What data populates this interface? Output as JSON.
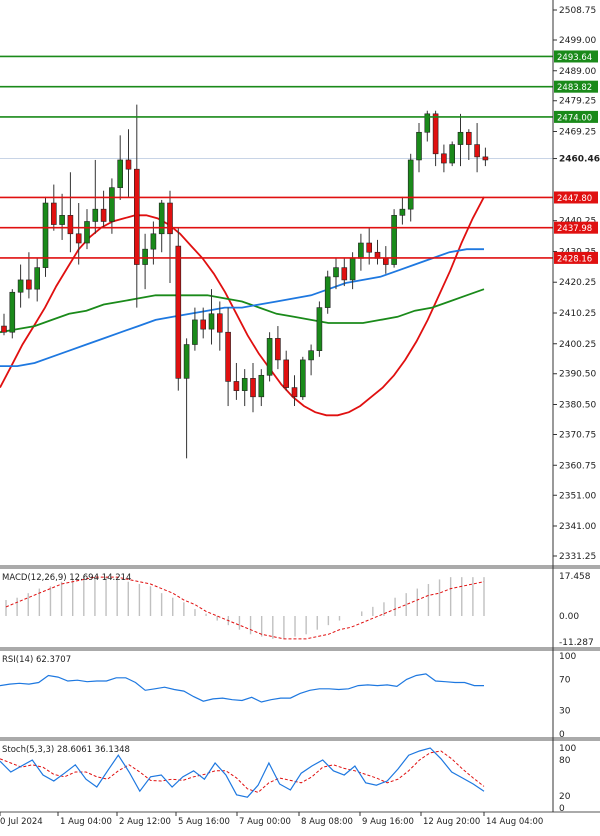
{
  "chart_data": {
    "type": "candlestick",
    "instrument_panel": {
      "y_ticks": [
        2508.75,
        2499.0,
        2489.0,
        2479.25,
        2469.25,
        2460.46,
        2440.25,
        2430.25,
        2420.25,
        2410.25,
        2400.25,
        2390.5,
        2380.5,
        2370.75,
        2360.75,
        2351.0,
        2341.0,
        2331.25
      ],
      "y_tick_labels": [
        "2508.75",
        "2499.00",
        "2489.00",
        "2479.25",
        "2469.25",
        "2460.46",
        "2440.25",
        "2430.25",
        "2420.25",
        "2410.25",
        "2400.25",
        "2390.50",
        "2380.50",
        "2370.75",
        "2360.75",
        "2351.00",
        "2341.00",
        "2331.25"
      ],
      "ylim": [
        2328.0,
        2512.0
      ],
      "last_price": 2460.46,
      "resistance_levels": [
        {
          "label": "2493.64",
          "value": 2493.64,
          "color": "#1a8a1a"
        },
        {
          "label": "2483.82",
          "value": 2483.82,
          "color": "#1a8a1a"
        },
        {
          "label": "2474.00",
          "value": 2474.0,
          "color": "#1a8a1a"
        }
      ],
      "support_levels": [
        {
          "label": "2447.80",
          "value": 2447.8,
          "color": "#e01010"
        },
        {
          "label": "2437.98",
          "value": 2437.98,
          "color": "#e01010"
        },
        {
          "label": "2428.16",
          "value": 2428.16,
          "color": "#e01010"
        }
      ],
      "candles": [
        {
          "o": 2406,
          "h": 2410,
          "l": 2403,
          "c": 2404
        },
        {
          "o": 2404,
          "h": 2418,
          "l": 2402,
          "c": 2417
        },
        {
          "o": 2417,
          "h": 2426,
          "l": 2412,
          "c": 2421
        },
        {
          "o": 2421,
          "h": 2430,
          "l": 2415,
          "c": 2418
        },
        {
          "o": 2418,
          "h": 2428,
          "l": 2414,
          "c": 2425
        },
        {
          "o": 2425,
          "h": 2448,
          "l": 2422,
          "c": 2446
        },
        {
          "o": 2446,
          "h": 2452,
          "l": 2437,
          "c": 2439
        },
        {
          "o": 2439,
          "h": 2449,
          "l": 2434,
          "c": 2442
        },
        {
          "o": 2442,
          "h": 2456,
          "l": 2430,
          "c": 2436
        },
        {
          "o": 2436,
          "h": 2446,
          "l": 2426,
          "c": 2433
        },
        {
          "o": 2433,
          "h": 2444,
          "l": 2431,
          "c": 2440
        },
        {
          "o": 2440,
          "h": 2460,
          "l": 2436,
          "c": 2444
        },
        {
          "o": 2444,
          "h": 2450,
          "l": 2438,
          "c": 2440
        },
        {
          "o": 2440,
          "h": 2454,
          "l": 2436,
          "c": 2451
        },
        {
          "o": 2451,
          "h": 2468,
          "l": 2447,
          "c": 2460
        },
        {
          "o": 2460,
          "h": 2470,
          "l": 2448,
          "c": 2457
        },
        {
          "o": 2457,
          "h": 2478,
          "l": 2412,
          "c": 2426
        },
        {
          "o": 2426,
          "h": 2436,
          "l": 2418,
          "c": 2431
        },
        {
          "o": 2431,
          "h": 2440,
          "l": 2426,
          "c": 2436
        },
        {
          "o": 2436,
          "h": 2447,
          "l": 2430,
          "c": 2446
        },
        {
          "o": 2446,
          "h": 2450,
          "l": 2420,
          "c": 2436
        },
        {
          "o": 2432,
          "h": 2438,
          "l": 2385,
          "c": 2389
        },
        {
          "o": 2389,
          "h": 2402,
          "l": 2363,
          "c": 2400
        },
        {
          "o": 2400,
          "h": 2412,
          "l": 2398,
          "c": 2408
        },
        {
          "o": 2408,
          "h": 2412,
          "l": 2402,
          "c": 2405
        },
        {
          "o": 2405,
          "h": 2418,
          "l": 2400,
          "c": 2410
        },
        {
          "o": 2410,
          "h": 2414,
          "l": 2398,
          "c": 2404
        },
        {
          "o": 2404,
          "h": 2412,
          "l": 2380,
          "c": 2388
        },
        {
          "o": 2388,
          "h": 2394,
          "l": 2382,
          "c": 2385
        },
        {
          "o": 2385,
          "h": 2392,
          "l": 2380,
          "c": 2389
        },
        {
          "o": 2389,
          "h": 2394,
          "l": 2378,
          "c": 2383
        },
        {
          "o": 2383,
          "h": 2392,
          "l": 2380,
          "c": 2390
        },
        {
          "o": 2390,
          "h": 2404,
          "l": 2388,
          "c": 2402
        },
        {
          "o": 2402,
          "h": 2406,
          "l": 2392,
          "c": 2395
        },
        {
          "o": 2395,
          "h": 2398,
          "l": 2385,
          "c": 2386
        },
        {
          "o": 2386,
          "h": 2390,
          "l": 2380,
          "c": 2383
        },
        {
          "o": 2383,
          "h": 2396,
          "l": 2382,
          "c": 2395
        },
        {
          "o": 2395,
          "h": 2400,
          "l": 2390,
          "c": 2398
        },
        {
          "o": 2398,
          "h": 2414,
          "l": 2396,
          "c": 2412
        },
        {
          "o": 2412,
          "h": 2424,
          "l": 2410,
          "c": 2422
        },
        {
          "o": 2422,
          "h": 2428,
          "l": 2418,
          "c": 2425
        },
        {
          "o": 2425,
          "h": 2428,
          "l": 2419,
          "c": 2421
        },
        {
          "o": 2421,
          "h": 2430,
          "l": 2418,
          "c": 2428
        },
        {
          "o": 2428,
          "h": 2436,
          "l": 2424,
          "c": 2433
        },
        {
          "o": 2433,
          "h": 2438,
          "l": 2426,
          "c": 2430
        },
        {
          "o": 2430,
          "h": 2434,
          "l": 2426,
          "c": 2428
        },
        {
          "o": 2428,
          "h": 2432,
          "l": 2423,
          "c": 2426
        },
        {
          "o": 2426,
          "h": 2444,
          "l": 2425,
          "c": 2442
        },
        {
          "o": 2442,
          "h": 2448,
          "l": 2439,
          "c": 2444
        },
        {
          "o": 2444,
          "h": 2462,
          "l": 2440,
          "c": 2460
        },
        {
          "o": 2460,
          "h": 2472,
          "l": 2456,
          "c": 2469
        },
        {
          "o": 2469,
          "h": 2476,
          "l": 2466,
          "c": 2475
        },
        {
          "o": 2475,
          "h": 2476,
          "l": 2458,
          "c": 2462
        },
        {
          "o": 2462,
          "h": 2465,
          "l": 2456,
          "c": 2459
        },
        {
          "o": 2459,
          "h": 2466,
          "l": 2458,
          "c": 2465
        },
        {
          "o": 2465,
          "h": 2475,
          "l": 2458,
          "c": 2469
        },
        {
          "o": 2469,
          "h": 2470,
          "l": 2460,
          "c": 2465
        },
        {
          "o": 2465,
          "h": 2472,
          "l": 2456,
          "c": 2461
        },
        {
          "o": 2461,
          "h": 2464,
          "l": 2458,
          "c": 2460
        }
      ],
      "ma_series": [
        {
          "color": "#e01010",
          "values": [
            2386,
            2393,
            2400,
            2406,
            2412,
            2419,
            2425,
            2431,
            2435,
            2438,
            2440,
            2441,
            2442,
            2442,
            2441,
            2439,
            2436,
            2432,
            2428,
            2423,
            2417,
            2410,
            2403,
            2397,
            2392,
            2387,
            2383,
            2380,
            2378,
            2377,
            2377,
            2378,
            2380,
            2383,
            2386,
            2390,
            2395,
            2401,
            2408,
            2416,
            2424,
            2433,
            2441,
            2448
          ]
        },
        {
          "color": "#1a8a1a",
          "values": [
            2404,
            2405,
            2406,
            2408,
            2410,
            2411,
            2413,
            2414,
            2415,
            2416,
            2416,
            2416,
            2416,
            2415,
            2414,
            2412,
            2410,
            2409,
            2408,
            2407,
            2407,
            2407,
            2408,
            2409,
            2411,
            2412,
            2414,
            2416,
            2418
          ]
        },
        {
          "color": "#1e78e0",
          "values": [
            2393,
            2393,
            2394,
            2396,
            2398,
            2400,
            2402,
            2404,
            2406,
            2408,
            2409,
            2410,
            2411,
            2412,
            2412,
            2413,
            2414,
            2415,
            2416,
            2418,
            2420,
            2421,
            2422,
            2424,
            2426,
            2428,
            2430,
            2431,
            2431
          ]
        }
      ]
    },
    "macd_panel": {
      "label": "MACD(12,26,9) 12.694 14.214",
      "y_tick_labels": [
        "17.458",
        "0.00",
        "-11.287"
      ],
      "y_ticks": [
        17.458,
        0.0,
        -11.287
      ],
      "ylim": [
        -14,
        21
      ],
      "histogram": [
        7,
        8,
        10,
        12,
        13,
        15,
        16,
        17,
        17,
        17,
        16,
        15,
        14,
        13,
        10,
        8,
        6,
        3,
        1,
        -2,
        -4,
        -6,
        -8,
        -9,
        -10,
        -10,
        -9,
        -8,
        -6,
        -4,
        -2,
        0,
        2,
        4,
        6,
        8,
        10,
        12,
        14,
        16,
        17,
        17,
        17,
        17
      ],
      "signal": [
        4,
        6,
        8,
        10,
        12,
        14,
        15,
        16,
        17,
        17,
        17,
        16,
        15,
        14,
        12,
        10,
        7,
        5,
        2,
        0,
        -2,
        -4,
        -6,
        -8,
        -9,
        -10,
        -10,
        -10,
        -9,
        -8,
        -6,
        -5,
        -3,
        -1,
        1,
        3,
        5,
        7,
        9,
        10,
        12,
        13,
        14,
        15
      ]
    },
    "rsi_panel": {
      "label": "RSI(14) 62.3707",
      "y_tick_labels": [
        "100",
        "70",
        "30",
        "0"
      ],
      "y_ticks": [
        100,
        70,
        30,
        0
      ],
      "ylim": [
        0,
        100
      ],
      "values": [
        62,
        64,
        65,
        64,
        66,
        75,
        73,
        68,
        69,
        67,
        68,
        68,
        72,
        72,
        66,
        56,
        58,
        60,
        57,
        55,
        48,
        42,
        45,
        46,
        44,
        43,
        47,
        41,
        44,
        46,
        46,
        52,
        56,
        58,
        58,
        57,
        58,
        62,
        63,
        62,
        63,
        61,
        70,
        75,
        77,
        68,
        67,
        66,
        66,
        62,
        62
      ]
    },
    "stoch_panel": {
      "label": "Stoch(5,3,3) 28.6061 36.1348",
      "y_tick_labels": [
        "100",
        "80",
        "20",
        "0"
      ],
      "y_ticks": [
        100,
        80,
        20,
        0
      ],
      "ylim": [
        0,
        100
      ],
      "k_values": [
        78,
        60,
        70,
        80,
        55,
        45,
        58,
        72,
        48,
        35,
        62,
        88,
        60,
        28,
        52,
        55,
        35,
        52,
        62,
        48,
        75,
        55,
        22,
        18,
        38,
        75,
        40,
        30,
        58,
        70,
        80,
        62,
        55,
        70,
        42,
        38,
        45,
        65,
        88,
        95,
        100,
        82,
        60,
        50,
        40,
        28
      ],
      "d_values": [
        82,
        75,
        68,
        72,
        68,
        56,
        52,
        60,
        60,
        52,
        48,
        62,
        72,
        60,
        46,
        45,
        48,
        46,
        52,
        56,
        62,
        62,
        50,
        32,
        26,
        42,
        50,
        46,
        42,
        52,
        68,
        72,
        66,
        62,
        56,
        50,
        42,
        48,
        62,
        80,
        92,
        95,
        82,
        65,
        50,
        36
      ]
    },
    "x_axis": {
      "labels": [
        "0 Jul 2024",
        "1 Aug 04:00",
        "2 Aug 12:00",
        "5 Aug 16:00",
        "7 Aug 00:00",
        "8 Aug 08:00",
        "9 Aug 16:00",
        "12 Aug 20:00",
        "14 Aug 04:00"
      ]
    }
  },
  "colors": {
    "bull_candle": "#1a8a1a",
    "bear_candle": "#e01010",
    "macd_histogram": "#c0c0c0",
    "macd_signal": "#e01010",
    "rsi_line": "#1e78e0",
    "stoch_k": "#1e78e0",
    "stoch_d": "#e01010",
    "panel_separator": "#555555"
  }
}
